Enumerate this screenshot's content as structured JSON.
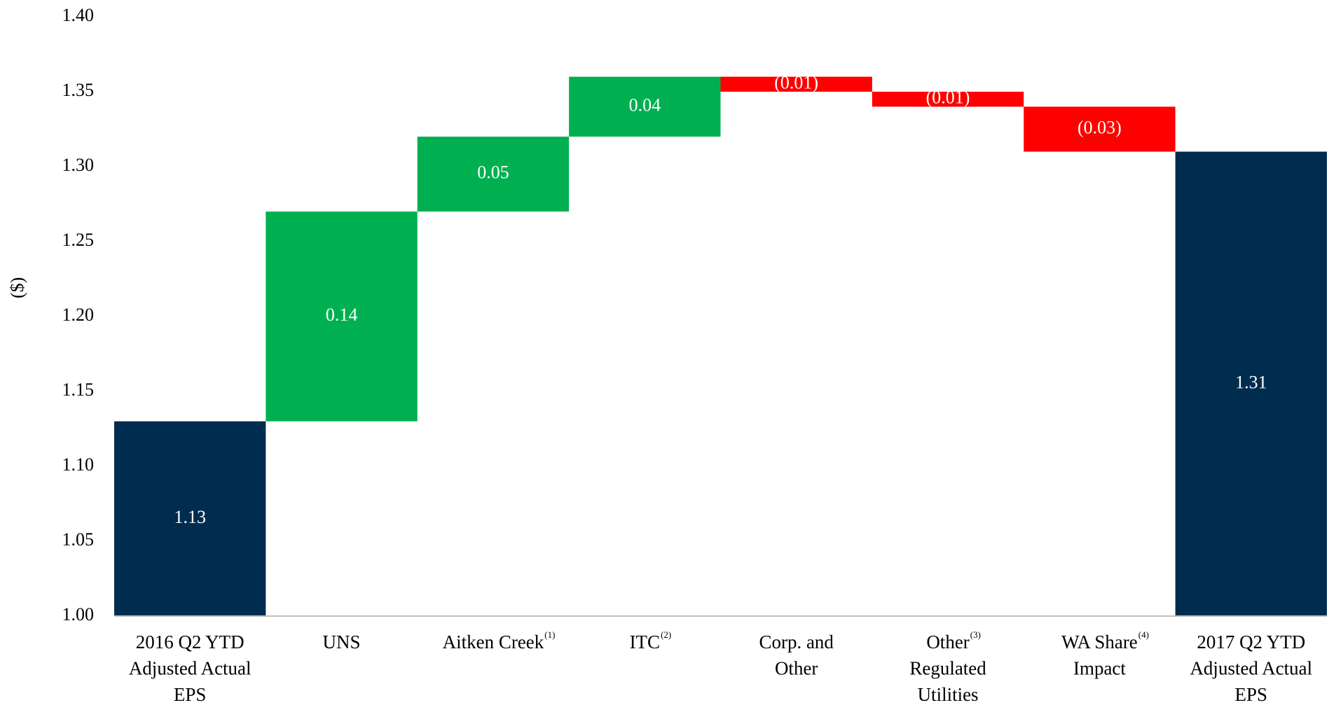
{
  "chart_data": {
    "type": "waterfall",
    "y_label": "($)",
    "categories": [
      [
        "2016 Q2 YTD",
        "Adjusted Actual",
        "EPS"
      ],
      [
        "UNS"
      ],
      [
        "Aitken Creek"
      ],
      [
        "ITC"
      ],
      [
        "Corp. and",
        "Other"
      ],
      [
        "Other",
        "Regulated",
        "Utilities"
      ],
      [
        "WA Share",
        "Impact"
      ],
      [
        "2017 Q2 YTD",
        "Adjusted Actual",
        "EPS"
      ]
    ],
    "category_notes": [
      null,
      null,
      "(1)",
      "(2)",
      null,
      "(3)",
      "(4)",
      null
    ],
    "values": [
      1.13,
      0.14,
      0.05,
      0.04,
      -0.01,
      -0.01,
      -0.03,
      1.31
    ],
    "value_labels": [
      "1.13",
      "0.14",
      "0.05",
      "0.04",
      "(0.01)",
      "(0.01)",
      "(0.03)",
      "1.31"
    ],
    "measure": [
      "total",
      "relative",
      "relative",
      "relative",
      "relative",
      "relative",
      "relative",
      "total"
    ],
    "colors": {
      "total": "#002d4f",
      "increase": "#00b050",
      "decrease": "#ff0000"
    },
    "ylim": [
      1.0,
      1.4
    ],
    "yticks": [
      {
        "value": 1.0,
        "label": "1.00"
      },
      {
        "value": 1.05,
        "label": "1.05"
      },
      {
        "value": 1.1,
        "label": "1.10"
      },
      {
        "value": 1.15,
        "label": "1.15"
      },
      {
        "value": 1.2,
        "label": "1.20"
      },
      {
        "value": 1.25,
        "label": "1.25"
      },
      {
        "value": 1.3,
        "label": "1.30"
      },
      {
        "value": 1.35,
        "label": "1.35"
      },
      {
        "value": 1.4,
        "label": "1.40"
      }
    ],
    "grid": false
  }
}
